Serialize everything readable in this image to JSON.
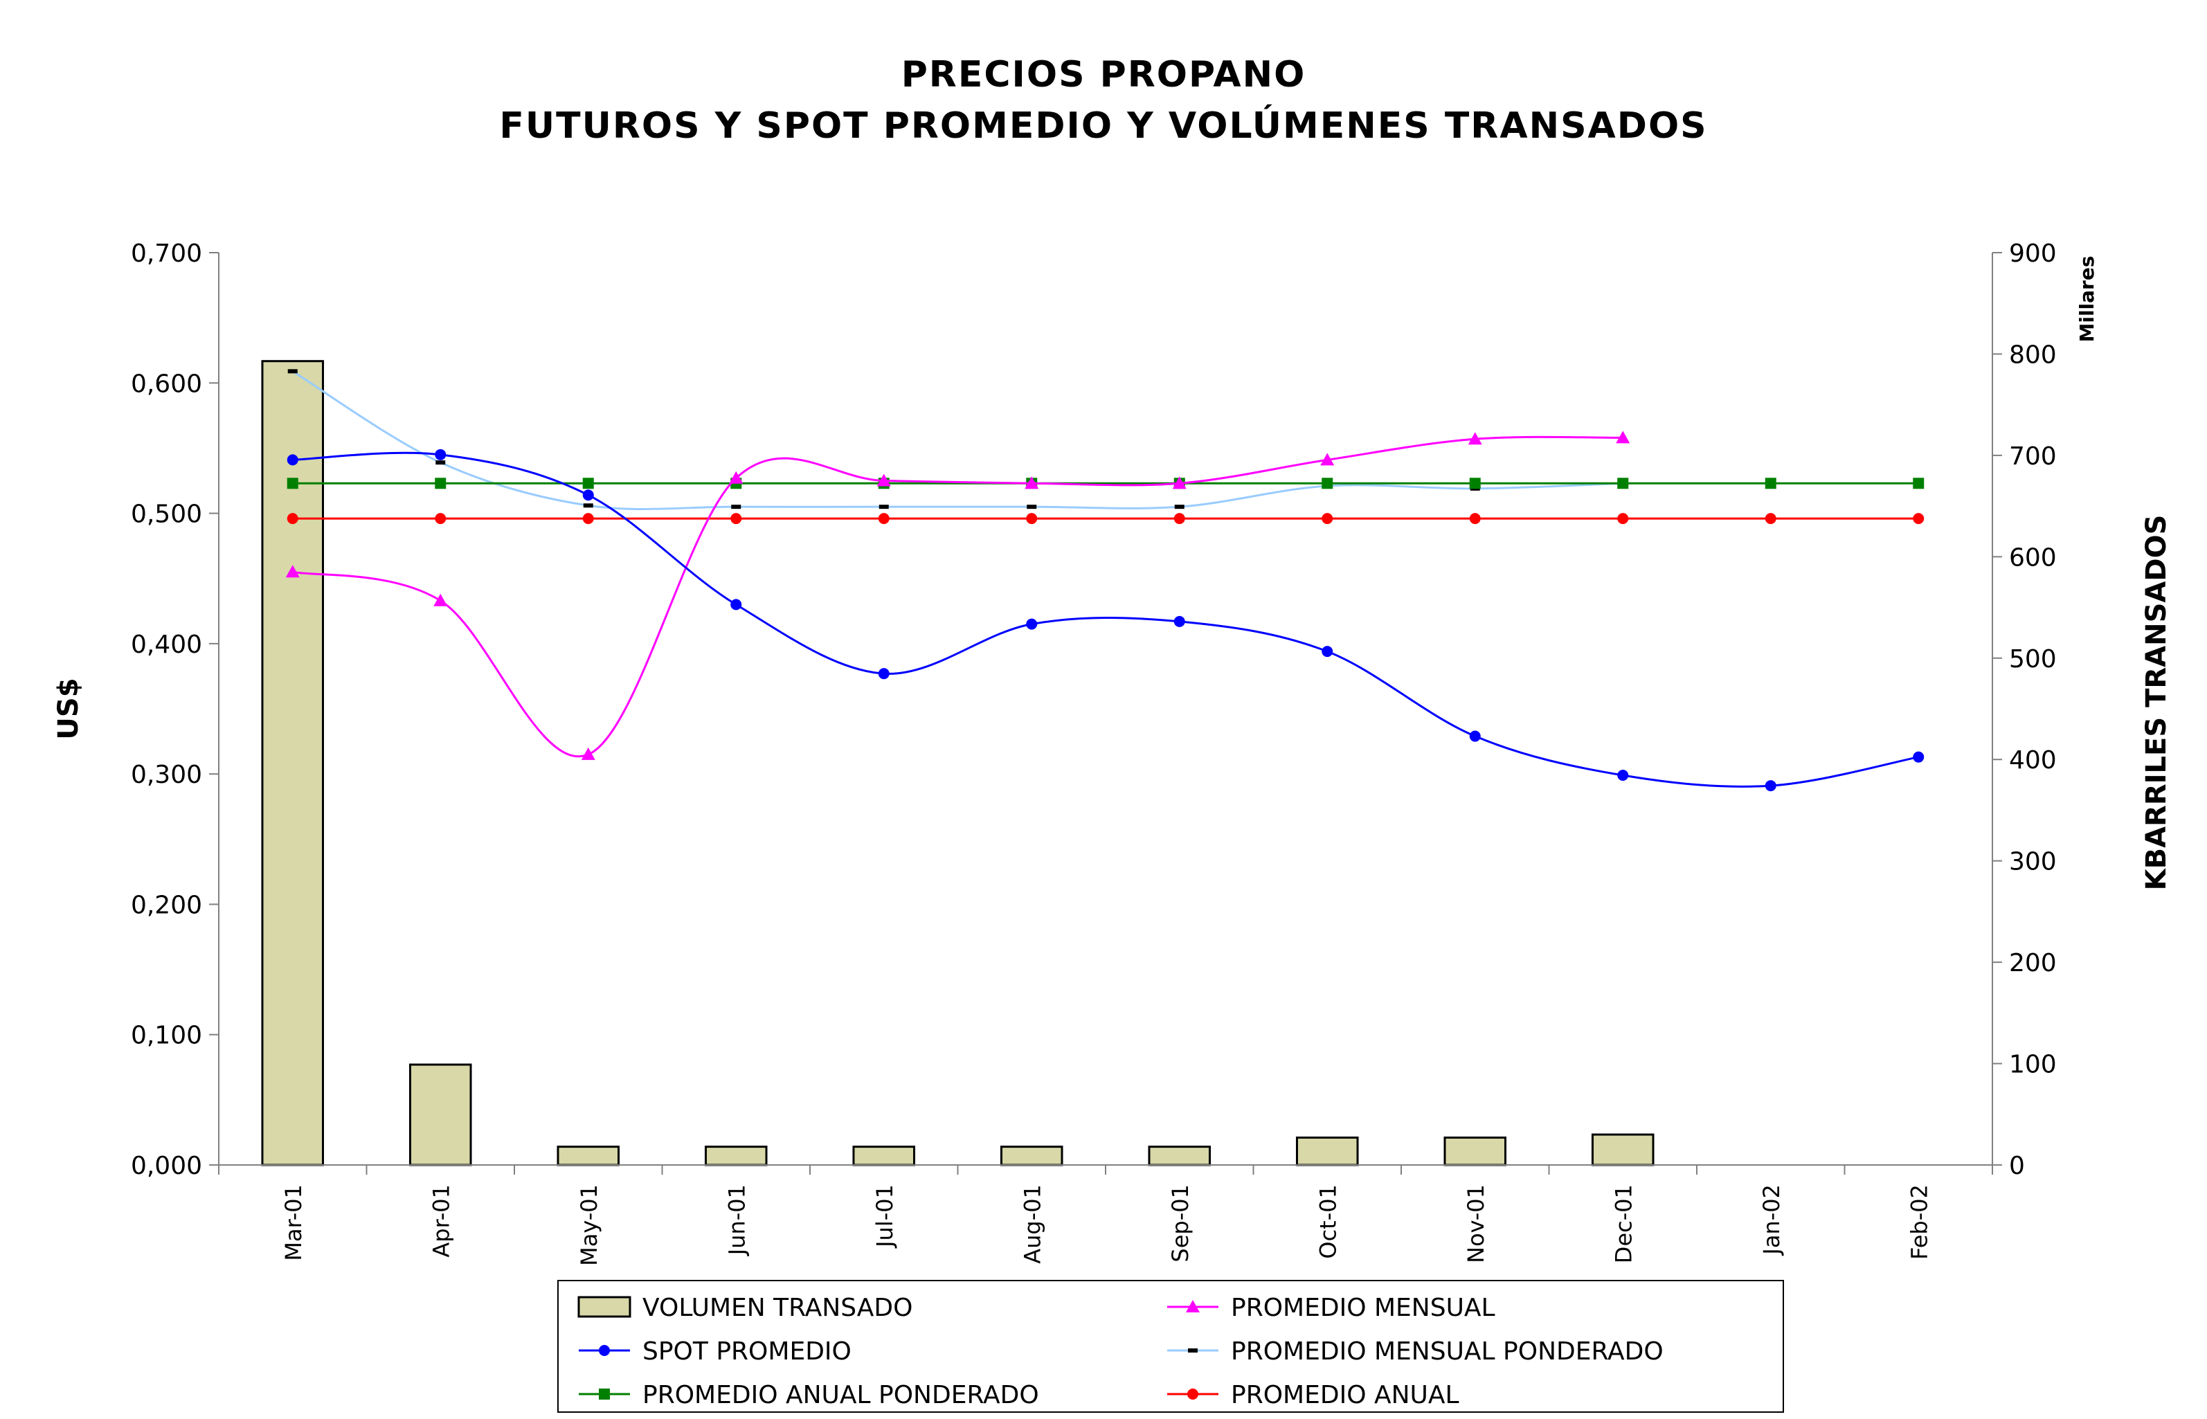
{
  "chart_data": {
    "type": "bar",
    "title": "PRECIOS PROPANO",
    "subtitle": "FUTUROS Y SPOT PROMEDIO Y VOLÚMENES TRANSADOS",
    "categories": [
      "Mar-01",
      "Apr-01",
      "May-01",
      "Jun-01",
      "Jul-01",
      "Aug-01",
      "Sep-01",
      "Oct-01",
      "Nov-01",
      "Dec-01",
      "Jan-02",
      "Feb-02"
    ],
    "y_left": {
      "label": "US$",
      "range": [
        0,
        0.7
      ],
      "ticks": [
        "0,000",
        "0,100",
        "0,200",
        "0,300",
        "0,400",
        "0,500",
        "0,600",
        "0,700"
      ]
    },
    "y_right": {
      "label": "KBARRILES TRANSADOS",
      "unit_label": "Millares",
      "range": [
        0,
        900
      ],
      "ticks": [
        "0",
        "100",
        "200",
        "300",
        "400",
        "500",
        "600",
        "700",
        "800",
        "900"
      ]
    },
    "grid": false,
    "legend_position": "bottom",
    "series": [
      {
        "name": "VOLUMEN TRANSADO",
        "type": "bar",
        "axis": "right",
        "color": "#d8d8a8",
        "values": [
          793,
          99,
          18,
          18,
          18,
          18,
          18,
          27,
          27,
          30,
          null,
          null
        ]
      },
      {
        "name": "PROMEDIO MENSUAL",
        "type": "line",
        "axis": "left",
        "color": "#ff00ff",
        "marker": "triangle",
        "values": [
          0.455,
          0.433,
          0.315,
          0.527,
          0.525,
          0.523,
          0.523,
          0.541,
          0.557,
          0.558,
          null,
          null
        ]
      },
      {
        "name": "SPOT PROMEDIO",
        "type": "line",
        "axis": "left",
        "color": "#0000ff",
        "marker": "circle",
        "values": [
          0.541,
          0.545,
          0.514,
          0.43,
          0.377,
          0.415,
          0.417,
          0.394,
          0.329,
          0.299,
          0.291,
          0.313
        ]
      },
      {
        "name": "PROMEDIO MENSUAL PONDERADO",
        "type": "line",
        "axis": "left",
        "color": "#99ccff",
        "marker": "dash",
        "values": [
          0.609,
          0.539,
          0.506,
          0.505,
          0.505,
          0.505,
          0.505,
          0.521,
          0.519,
          0.523,
          null,
          null
        ]
      },
      {
        "name": "PROMEDIO ANUAL PONDERADO",
        "type": "line",
        "axis": "left",
        "color": "#008000",
        "marker": "square",
        "values": [
          0.523,
          0.523,
          0.523,
          0.523,
          0.523,
          0.523,
          0.523,
          0.523,
          0.523,
          0.523,
          0.523,
          0.523
        ]
      },
      {
        "name": "PROMEDIO ANUAL",
        "type": "line",
        "axis": "left",
        "color": "#ff0000",
        "marker": "circle",
        "values": [
          0.496,
          0.496,
          0.496,
          0.496,
          0.496,
          0.496,
          0.496,
          0.496,
          0.496,
          0.496,
          0.496,
          0.496
        ]
      }
    ],
    "legend_order": [
      "VOLUMEN TRANSADO",
      "PROMEDIO MENSUAL",
      "SPOT PROMEDIO",
      "PROMEDIO MENSUAL PONDERADO",
      "PROMEDIO ANUAL PONDERADO",
      "PROMEDIO ANUAL"
    ]
  }
}
